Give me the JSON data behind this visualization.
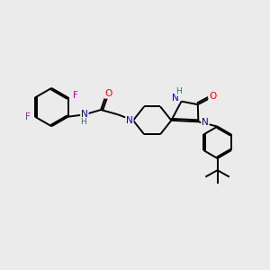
{
  "bg_color": "#ebebeb",
  "bond_color": "#000000",
  "bond_width": 1.4,
  "figsize": [
    3.0,
    3.0
  ],
  "dpi": 100,
  "atom_colors": {
    "N": "#0000cc",
    "O": "#ff0000",
    "F": "#cc00cc",
    "H": "#008080",
    "C": "#000000"
  }
}
